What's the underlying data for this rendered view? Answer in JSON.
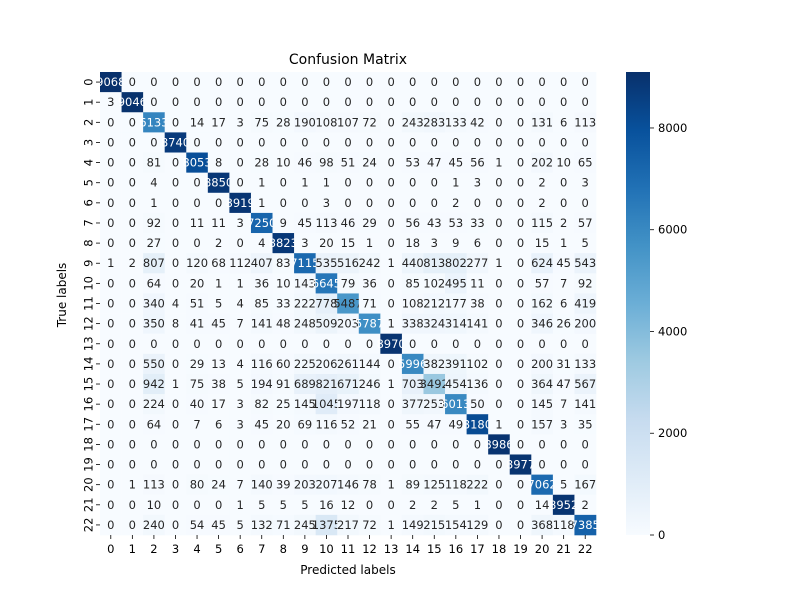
{
  "chart_data": {
    "type": "heatmap",
    "title": "Confusion Matrix",
    "xlabel": "Predicted labels",
    "ylabel": "True labels",
    "x_tick_labels": [
      "0",
      "1",
      "2",
      "3",
      "4",
      "5",
      "6",
      "7",
      "8",
      "9",
      "10",
      "11",
      "12",
      "13",
      "14",
      "15",
      "16",
      "17",
      "18",
      "19",
      "20",
      "21",
      "22"
    ],
    "y_tick_labels": [
      "0",
      "1",
      "2",
      "3",
      "4",
      "5",
      "6",
      "7",
      "8",
      "9",
      "10",
      "11",
      "12",
      "13",
      "14",
      "15",
      "16",
      "17",
      "18",
      "19",
      "20",
      "21",
      "22"
    ],
    "colorbar": {
      "min": 0,
      "max": 9100,
      "ticks": [
        0,
        2000,
        4000,
        6000,
        8000
      ],
      "tick_labels": [
        "0",
        "2000",
        "4000",
        "6000",
        "8000"
      ],
      "colormap": "Blues"
    },
    "values": [
      [
        9068,
        0,
        0,
        0,
        0,
        0,
        0,
        0,
        0,
        0,
        0,
        0,
        0,
        0,
        0,
        0,
        0,
        0,
        0,
        0,
        0,
        0,
        0
      ],
      [
        3,
        9046,
        0,
        0,
        0,
        0,
        0,
        0,
        0,
        0,
        0,
        0,
        0,
        0,
        0,
        0,
        0,
        0,
        0,
        0,
        0,
        0,
        0
      ],
      [
        0,
        0,
        6133,
        0,
        14,
        17,
        3,
        75,
        28,
        190,
        108,
        107,
        72,
        0,
        243,
        283,
        133,
        42,
        0,
        0,
        131,
        6,
        113
      ],
      [
        0,
        0,
        0,
        8740,
        0,
        0,
        0,
        0,
        0,
        0,
        0,
        0,
        0,
        0,
        0,
        0,
        0,
        0,
        0,
        0,
        0,
        0,
        0
      ],
      [
        0,
        0,
        81,
        0,
        8053,
        8,
        0,
        28,
        10,
        46,
        98,
        51,
        24,
        0,
        53,
        47,
        45,
        56,
        1,
        0,
        202,
        10,
        65
      ],
      [
        0,
        0,
        4,
        0,
        0,
        8850,
        0,
        1,
        0,
        1,
        1,
        0,
        0,
        0,
        0,
        0,
        1,
        3,
        0,
        0,
        2,
        0,
        3
      ],
      [
        0,
        0,
        1,
        0,
        0,
        0,
        8919,
        1,
        0,
        0,
        3,
        0,
        0,
        0,
        0,
        0,
        2,
        0,
        0,
        0,
        2,
        0,
        0
      ],
      [
        0,
        0,
        92,
        0,
        11,
        11,
        3,
        7250,
        9,
        45,
        113,
        46,
        29,
        0,
        56,
        43,
        53,
        33,
        0,
        0,
        115,
        2,
        57
      ],
      [
        0,
        0,
        27,
        0,
        0,
        2,
        0,
        4,
        8823,
        3,
        20,
        15,
        1,
        0,
        18,
        3,
        9,
        6,
        0,
        0,
        15,
        1,
        5
      ],
      [
        1,
        2,
        807,
        0,
        120,
        68,
        112,
        407,
        83,
        7115,
        535,
        516,
        242,
        1,
        440,
        813,
        802,
        277,
        1,
        0,
        624,
        45,
        543
      ],
      [
        0,
        0,
        64,
        0,
        20,
        1,
        1,
        36,
        10,
        143,
        6645,
        79,
        36,
        0,
        85,
        102,
        495,
        11,
        0,
        0,
        57,
        7,
        92
      ],
      [
        0,
        0,
        340,
        4,
        51,
        5,
        4,
        85,
        33,
        222,
        778,
        5487,
        71,
        0,
        108,
        212,
        177,
        38,
        0,
        0,
        162,
        6,
        419
      ],
      [
        0,
        0,
        350,
        8,
        41,
        45,
        7,
        141,
        48,
        248,
        509,
        203,
        5787,
        1,
        338,
        324,
        314,
        141,
        0,
        0,
        346,
        26,
        200
      ],
      [
        0,
        0,
        0,
        0,
        0,
        0,
        0,
        0,
        0,
        0,
        0,
        0,
        0,
        8970,
        0,
        0,
        0,
        0,
        0,
        0,
        0,
        0,
        0
      ],
      [
        0,
        0,
        550,
        0,
        29,
        13,
        4,
        116,
        60,
        225,
        206,
        261,
        144,
        0,
        5996,
        382,
        391,
        102,
        0,
        0,
        200,
        31,
        133
      ],
      [
        0,
        0,
        942,
        1,
        75,
        38,
        5,
        194,
        91,
        689,
        821,
        671,
        246,
        1,
        703,
        3492,
        454,
        136,
        0,
        0,
        364,
        47,
        567
      ],
      [
        0,
        0,
        224,
        0,
        40,
        17,
        3,
        82,
        25,
        145,
        1045,
        197,
        118,
        0,
        377,
        253,
        6013,
        50,
        0,
        0,
        145,
        7,
        141
      ],
      [
        0,
        0,
        64,
        0,
        7,
        6,
        3,
        45,
        20,
        69,
        116,
        52,
        21,
        0,
        55,
        47,
        49,
        8180,
        1,
        0,
        157,
        3,
        35
      ],
      [
        0,
        0,
        0,
        0,
        0,
        0,
        0,
        0,
        0,
        0,
        0,
        0,
        0,
        0,
        0,
        0,
        0,
        0,
        8986,
        0,
        0,
        0,
        0
      ],
      [
        0,
        0,
        0,
        0,
        0,
        0,
        0,
        0,
        0,
        0,
        0,
        0,
        0,
        0,
        0,
        0,
        0,
        0,
        0,
        8977,
        0,
        0,
        0
      ],
      [
        0,
        1,
        113,
        0,
        80,
        24,
        7,
        140,
        39,
        203,
        207,
        146,
        78,
        1,
        89,
        125,
        118,
        222,
        0,
        0,
        7062,
        5,
        167
      ],
      [
        0,
        0,
        10,
        0,
        0,
        0,
        1,
        5,
        5,
        5,
        16,
        12,
        0,
        0,
        2,
        2,
        5,
        1,
        0,
        0,
        14,
        8952,
        2
      ],
      [
        0,
        0,
        240,
        0,
        54,
        45,
        5,
        132,
        71,
        245,
        1375,
        217,
        72,
        1,
        149,
        215,
        154,
        129,
        0,
        0,
        368,
        118,
        7385
      ]
    ]
  }
}
